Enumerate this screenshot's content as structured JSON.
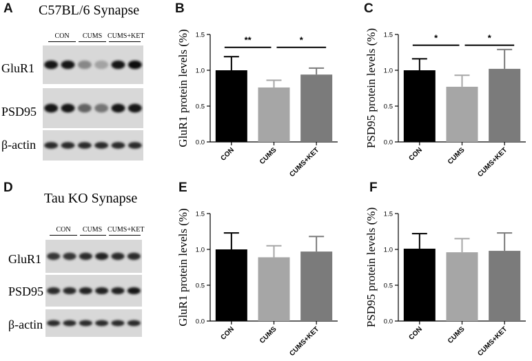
{
  "panels": {
    "a": {
      "letter": "A",
      "title": "C57BL/6 Synapse",
      "lanes": [
        "CON",
        "CUMS",
        "CUMS+KET"
      ],
      "proteins": [
        "GluR1",
        "PSD95",
        "β-actin"
      ]
    },
    "b": {
      "letter": "B"
    },
    "c": {
      "letter": "C"
    },
    "d": {
      "letter": "D",
      "title": "Tau KO Synapse",
      "lanes": [
        "CON",
        "CUMS",
        "CUMS+KET"
      ],
      "proteins": [
        "GluR1",
        "PSD95",
        "β-actin"
      ]
    },
    "e": {
      "letter": "E"
    },
    "f": {
      "letter": "F"
    }
  },
  "blots": {
    "a": [
      [
        0.95,
        0.95,
        0.35,
        0.2,
        0.95,
        1.0
      ],
      [
        0.95,
        0.95,
        0.55,
        0.45,
        0.95,
        0.95
      ],
      [
        0.85,
        0.85,
        0.85,
        0.85,
        0.85,
        0.85
      ]
    ],
    "d": [
      [
        0.8,
        0.8,
        0.85,
        0.9,
        0.85,
        0.85
      ],
      [
        0.85,
        0.85,
        0.9,
        0.9,
        0.9,
        0.95
      ],
      [
        0.85,
        0.85,
        0.85,
        0.85,
        0.85,
        0.85
      ]
    ]
  },
  "colors": {
    "CON": "#000000",
    "CUMS": "#a6a6a6",
    "CUMS+KET": "#7b7b7b"
  },
  "chart_data": [
    {
      "id": "b",
      "type": "bar",
      "categories": [
        "CON",
        "CUMS",
        "CUMS+KET"
      ],
      "values": [
        1.0,
        0.76,
        0.94
      ],
      "errors": [
        0.19,
        0.1,
        0.09
      ],
      "ylabel": "GluR1 protein levels (%)",
      "ylim": [
        0,
        1.5
      ],
      "yticks": [
        "0.0",
        "0.5",
        "1.0",
        "1.5"
      ],
      "significance": [
        {
          "from": 0,
          "to": 1,
          "y": 1.32,
          "label": "**"
        },
        {
          "from": 1,
          "to": 2,
          "y": 1.32,
          "label": "*"
        }
      ]
    },
    {
      "id": "c",
      "type": "bar",
      "categories": [
        "CON",
        "CUMS",
        "CUMS+KET"
      ],
      "values": [
        1.0,
        0.77,
        1.02
      ],
      "errors": [
        0.16,
        0.16,
        0.27
      ],
      "ylabel": "PSD95 protein levels (%)",
      "ylim": [
        0,
        1.5
      ],
      "yticks": [
        "0.0",
        "0.5",
        "1.0",
        "1.5"
      ],
      "significance": [
        {
          "from": 0,
          "to": 1,
          "y": 1.35,
          "label": "*"
        },
        {
          "from": 1,
          "to": 2,
          "y": 1.35,
          "label": "*"
        }
      ]
    },
    {
      "id": "e",
      "type": "bar",
      "categories": [
        "CON",
        "CUMS",
        "CUMS+KET"
      ],
      "values": [
        1.0,
        0.89,
        0.97
      ],
      "errors": [
        0.23,
        0.16,
        0.21
      ],
      "ylabel": "GluR1 protein levels (%)",
      "ylim": [
        0,
        1.5
      ],
      "yticks": [
        "0.0",
        "0.5",
        "1.0",
        "1.5"
      ],
      "significance": []
    },
    {
      "id": "f",
      "type": "bar",
      "categories": [
        "CON",
        "CUMS",
        "CUMS+KET"
      ],
      "values": [
        1.01,
        0.96,
        0.98
      ],
      "errors": [
        0.21,
        0.19,
        0.25
      ],
      "ylabel": "PSD95 protein levels (%)",
      "ylim": [
        0,
        1.5
      ],
      "yticks": [
        "0.0",
        "0.5",
        "1.0",
        "1.5"
      ],
      "significance": []
    }
  ]
}
